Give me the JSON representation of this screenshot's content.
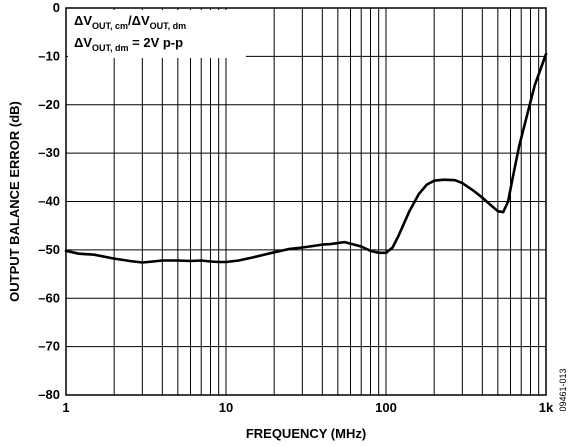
{
  "chart_data": {
    "type": "line",
    "title": "",
    "xlabel": "FREQUENCY (MHz)",
    "ylabel": "OUTPUT BALANCE ERROR (dB)",
    "x_scale": "log",
    "xlim": [
      1,
      1000
    ],
    "ylim": [
      -80,
      0
    ],
    "x_tick_labels": [
      "1",
      "10",
      "100",
      "1k"
    ],
    "x_tick_values": [
      1,
      10,
      100,
      1000
    ],
    "y_ticks": [
      0,
      -10,
      -20,
      -30,
      -40,
      -50,
      -60,
      -70,
      -80
    ],
    "y_tick_labels": [
      "0",
      "–10",
      "–20",
      "–30",
      "–40",
      "–50",
      "–60",
      "–70",
      "–80"
    ],
    "grid": true,
    "annotation": {
      "line1_main": "ΔV",
      "line1_sub": "OUT, cm",
      "line1_div": "/ΔV",
      "line1_sub2": "OUT, dm",
      "line2_main": "ΔV",
      "line2_sub": "OUT, dm",
      "line2_rest": " = 2V p-p"
    },
    "figure_id": "09461-013",
    "series": [
      {
        "x": [
          1,
          1.2,
          1.5,
          2,
          2.5,
          3,
          3.5,
          4,
          5,
          6,
          7,
          8,
          9,
          10,
          12,
          15,
          20,
          25,
          30,
          35,
          40,
          45,
          50,
          55,
          60,
          70,
          80,
          90,
          100,
          110,
          120,
          140,
          160,
          180,
          200,
          230,
          270,
          300,
          350,
          400,
          450,
          500,
          540,
          580,
          620,
          680,
          750,
          850,
          1000
        ],
        "y": [
          -50.2,
          -50.8,
          -51,
          -51.8,
          -52.3,
          -52.6,
          -52.4,
          -52.2,
          -52.2,
          -52.3,
          -52.2,
          -52.4,
          -52.5,
          -52.5,
          -52.2,
          -51.5,
          -50.5,
          -49.8,
          -49.5,
          -49.2,
          -48.9,
          -48.8,
          -48.6,
          -48.4,
          -48.7,
          -49.3,
          -50.2,
          -50.6,
          -50.6,
          -49.5,
          -47,
          -42,
          -38.5,
          -36.5,
          -35.7,
          -35.5,
          -35.6,
          -36.2,
          -37.7,
          -39.2,
          -40.7,
          -42,
          -42.2,
          -40,
          -35,
          -28.5,
          -23,
          -16,
          -9.5
        ]
      }
    ]
  }
}
